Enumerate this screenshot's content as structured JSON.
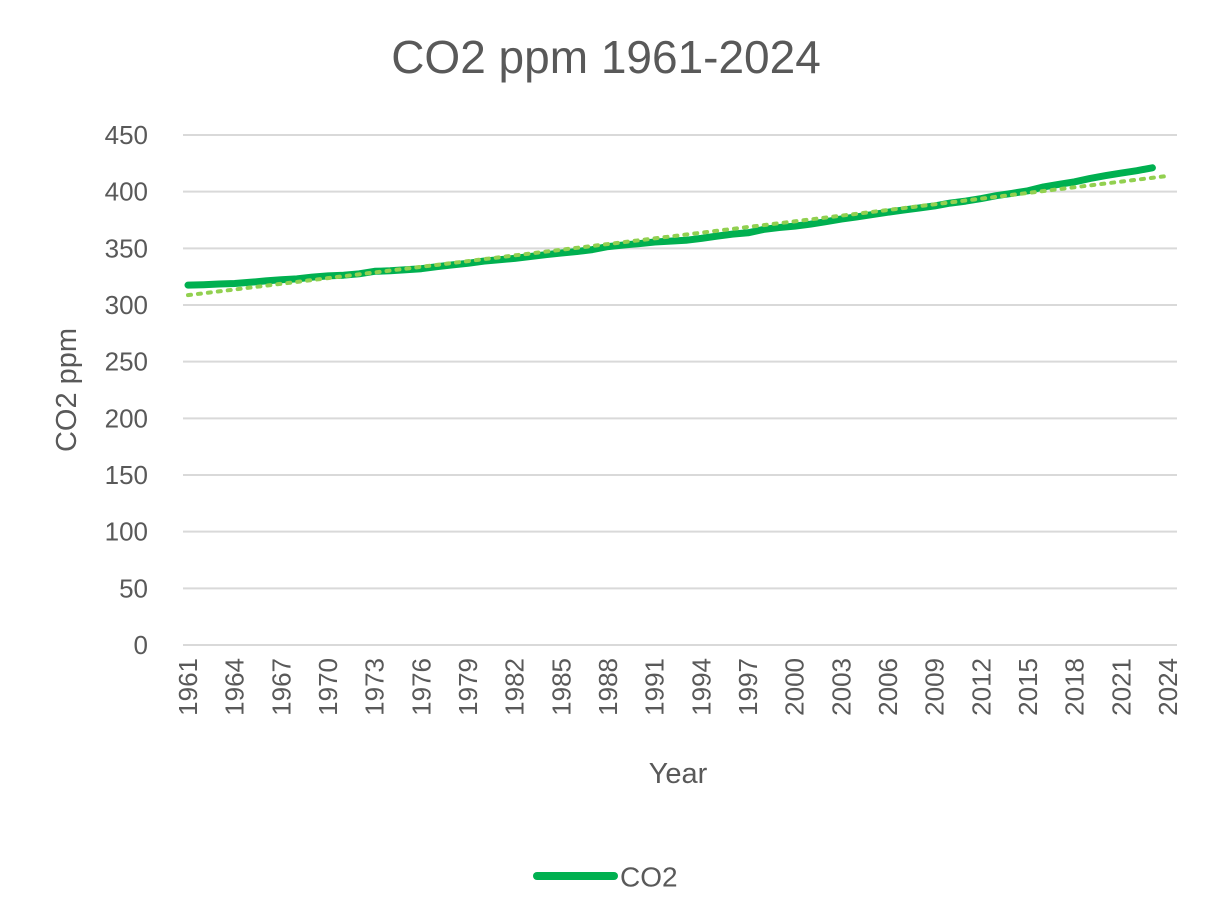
{
  "chart_data": {
    "type": "line",
    "title": "CO2 ppm 1961-2024",
    "xlabel": "Year",
    "ylabel": "CO2 ppm",
    "ylim": [
      0,
      450
    ],
    "yticks": [
      "0",
      "50",
      "100",
      "150",
      "200",
      "250",
      "300",
      "350",
      "400",
      "450"
    ],
    "x_tick_labels": [
      "1961",
      "1964",
      "1967",
      "1970",
      "1973",
      "1976",
      "1979",
      "1982",
      "1985",
      "1988",
      "1991",
      "1994",
      "1997",
      "2000",
      "2003",
      "2006",
      "2009",
      "2012",
      "2015",
      "2018",
      "2021",
      "2024"
    ],
    "grid": true,
    "legend_position": "bottom",
    "x": [
      1961,
      1962,
      1963,
      1964,
      1965,
      1966,
      1967,
      1968,
      1969,
      1970,
      1971,
      1972,
      1973,
      1974,
      1975,
      1976,
      1977,
      1978,
      1979,
      1980,
      1981,
      1982,
      1983,
      1984,
      1985,
      1986,
      1987,
      1988,
      1989,
      1990,
      1991,
      1992,
      1993,
      1994,
      1995,
      1996,
      1997,
      1998,
      1999,
      2000,
      2001,
      2002,
      2003,
      2004,
      2005,
      2006,
      2007,
      2008,
      2009,
      2010,
      2011,
      2012,
      2013,
      2014,
      2015,
      2016,
      2017,
      2018,
      2019,
      2020,
      2021,
      2022,
      2023
    ],
    "series": [
      {
        "name": "CO2",
        "color": "#00b050",
        "values": [
          317.6,
          317.9,
          318.5,
          319.0,
          320.0,
          321.3,
          322.2,
          323.0,
          324.6,
          325.7,
          326.3,
          327.5,
          329.7,
          330.2,
          331.1,
          332.0,
          333.8,
          335.4,
          336.8,
          338.7,
          339.9,
          341.1,
          342.8,
          344.4,
          345.9,
          347.2,
          348.9,
          351.5,
          352.9,
          354.2,
          355.6,
          356.4,
          357.1,
          358.8,
          360.8,
          362.6,
          363.7,
          366.7,
          368.4,
          369.6,
          371.3,
          373.5,
          375.9,
          377.7,
          379.8,
          381.9,
          383.8,
          385.6,
          387.4,
          389.9,
          391.7,
          393.9,
          396.5,
          398.6,
          400.8,
          404.2,
          406.5,
          408.7,
          411.7,
          414.2,
          416.4,
          418.5,
          421.1
        ]
      }
    ],
    "trendline": {
      "type": "linear",
      "color": "#92d050",
      "style": "dotted"
    }
  }
}
